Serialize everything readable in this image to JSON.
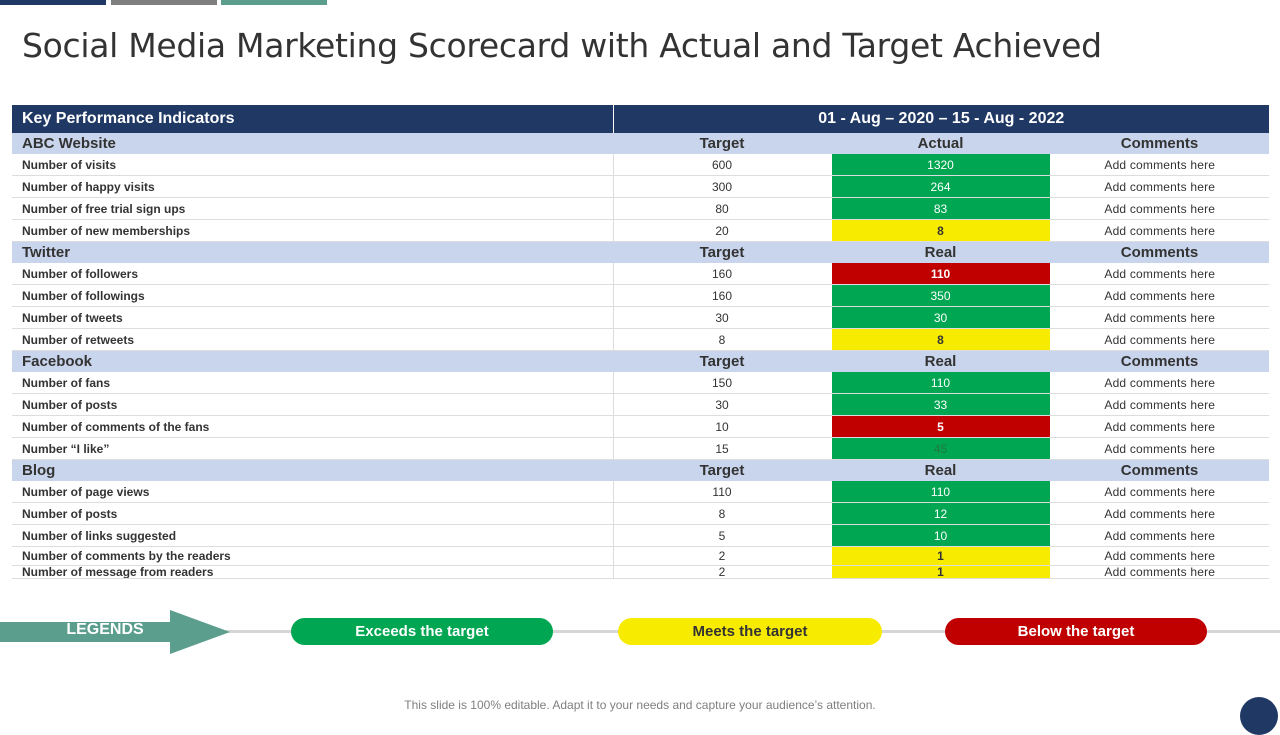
{
  "title": "Social Media Marketing Scorecard with Actual and Target Achieved",
  "colors": {
    "navy": "#1f3864",
    "section_bg": "#c9d5ec",
    "green": "#00a651",
    "yellow": "#f7ec00",
    "red": "#c00000",
    "teal": "#5b9e8e",
    "grey": "#7f7f7f"
  },
  "table": {
    "header": {
      "kpi": "Key Performance Indicators",
      "period": "01 - Aug – 2020 – 15 - Aug - 2022"
    },
    "sections": [
      {
        "name": "ABC Website",
        "target_label": "Target",
        "actual_label": "Actual",
        "comments_label": "Comments",
        "rows": [
          {
            "kpi": "Number of visits",
            "target": "600",
            "actual": "1320",
            "status": "green",
            "comment": "Add comments here"
          },
          {
            "kpi": "Number of happy visits",
            "target": "300",
            "actual": "264",
            "status": "green",
            "comment": "Add comments here"
          },
          {
            "kpi": "Number of free trial sign ups",
            "target": "80",
            "actual": "83",
            "status": "green",
            "comment": "Add comments here"
          },
          {
            "kpi": "Number of new memberships",
            "target": "20",
            "actual": "8",
            "status": "yellow",
            "comment": "Add comments here"
          }
        ]
      },
      {
        "name": "Twitter",
        "target_label": "Target",
        "actual_label": "Real",
        "comments_label": "Comments",
        "rows": [
          {
            "kpi": "Number of followers",
            "target": "160",
            "actual": "110",
            "status": "red",
            "comment": "Add comments here"
          },
          {
            "kpi": "Number of followings",
            "target": "160",
            "actual": "350",
            "status": "green",
            "comment": "Add comments here"
          },
          {
            "kpi": "Number of tweets",
            "target": "30",
            "actual": "30",
            "status": "green",
            "comment": "Add comments here"
          },
          {
            "kpi": "Number of retweets",
            "target": "8",
            "actual": "8",
            "status": "yellow",
            "comment": "Add comments here"
          }
        ]
      },
      {
        "name": "Facebook",
        "target_label": "Target",
        "actual_label": "Real",
        "comments_label": "Comments",
        "rows": [
          {
            "kpi": "Number of fans",
            "target": "150",
            "actual": "110",
            "status": "green",
            "comment": "Add comments here"
          },
          {
            "kpi": "Number of posts",
            "target": "30",
            "actual": "33",
            "status": "green",
            "comment": "Add comments here"
          },
          {
            "kpi": "Number of comments of the fans",
            "target": "10",
            "actual": "5",
            "status": "red",
            "comment": "Add comments here"
          },
          {
            "kpi": "Number “I like”",
            "target": "15",
            "actual": "45",
            "status": "green-muted",
            "comment": "Add comments here"
          }
        ]
      },
      {
        "name": "Blog",
        "target_label": "Target",
        "actual_label": "Real",
        "comments_label": "Comments",
        "rows": [
          {
            "kpi": "Number of page views",
            "target": "110",
            "actual": "110",
            "status": "green",
            "comment": "Add comments here"
          },
          {
            "kpi": "Number of posts",
            "target": "8",
            "actual": "12",
            "status": "green",
            "comment": "Add comments here"
          },
          {
            "kpi": "Number of links suggested",
            "target": "5",
            "actual": "10",
            "status": "green",
            "comment": "Add comments here"
          },
          {
            "kpi": "Number of comments by the readers",
            "target": "2",
            "actual": "1",
            "status": "yellow",
            "comment": "Add comments here"
          },
          {
            "kpi": "Number of message from readers",
            "target": "2",
            "actual": "1",
            "status": "yellow",
            "comment": "Add comments here"
          }
        ]
      }
    ]
  },
  "legend": {
    "label": "LEGENDS",
    "exceeds": "Exceeds the target",
    "meets": "Meets the target",
    "below": "Below the target"
  },
  "footer": "This slide is 100% editable. Adapt it to your needs and capture your audience’s attention."
}
